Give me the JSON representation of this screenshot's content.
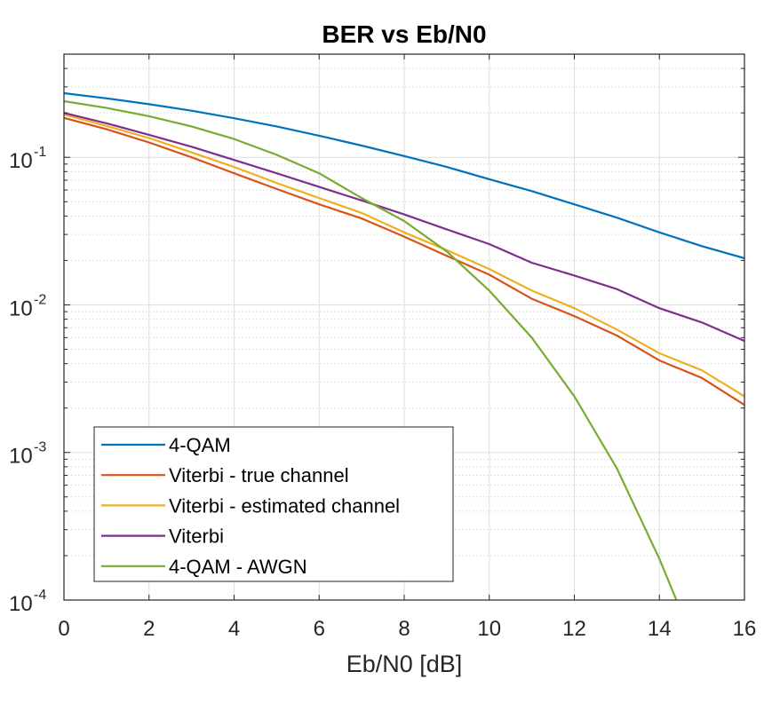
{
  "chart_data": {
    "type": "line",
    "title": "BER vs Eb/N0",
    "xlabel": "Eb/N0 [dB]",
    "ylabel": "",
    "xlim": [
      0,
      16
    ],
    "ylim": [
      0.0001,
      0.5
    ],
    "yscale": "log",
    "grid": true,
    "legend_position": "bottom-left",
    "x_ticks": [
      "0",
      "2",
      "4",
      "6",
      "8",
      "10",
      "12",
      "14",
      "16"
    ],
    "y_ticks": [
      {
        "base": "10",
        "exp": "-1",
        "value": 0.1
      },
      {
        "base": "10",
        "exp": "-2",
        "value": 0.01
      },
      {
        "base": "10",
        "exp": "-3",
        "value": 0.001
      },
      {
        "base": "10",
        "exp": "-4",
        "value": 0.0001
      }
    ],
    "series": [
      {
        "name": "4-QAM",
        "color": "#0072BD",
        "x": [
          0,
          1,
          2,
          3,
          4,
          5,
          6,
          7,
          8,
          9,
          10,
          11,
          12,
          13,
          14,
          15,
          16
        ],
        "y": [
          0.272,
          0.251,
          0.229,
          0.207,
          0.184,
          0.162,
          0.14,
          0.12,
          0.102,
          0.086,
          0.071,
          0.059,
          0.048,
          0.039,
          0.031,
          0.025,
          0.0207
        ]
      },
      {
        "name": "Viterbi - true channel",
        "color": "#D95319",
        "x": [
          0,
          1,
          2,
          3,
          4,
          5,
          6,
          7,
          8,
          9,
          10,
          11,
          12,
          13,
          14,
          15,
          16
        ],
        "y": [
          0.185,
          0.155,
          0.126,
          0.1,
          0.078,
          0.061,
          0.048,
          0.0385,
          0.029,
          0.0215,
          0.016,
          0.011,
          0.0084,
          0.0062,
          0.0042,
          0.0032,
          0.0021
        ]
      },
      {
        "name": "Viterbi - estimated channel",
        "color": "#EDB120",
        "x": [
          0,
          1,
          2,
          3,
          4,
          5,
          6,
          7,
          8,
          9,
          10,
          11,
          12,
          13,
          14,
          15,
          16
        ],
        "y": [
          0.195,
          0.163,
          0.135,
          0.108,
          0.086,
          0.067,
          0.053,
          0.042,
          0.031,
          0.0235,
          0.0175,
          0.0125,
          0.0095,
          0.0068,
          0.0047,
          0.0036,
          0.0024
        ]
      },
      {
        "name": "Viterbi",
        "color": "#7E2F8E",
        "x": [
          0,
          1,
          2,
          3,
          4,
          5,
          6,
          7,
          8,
          9,
          10,
          11,
          12,
          13,
          14,
          15,
          16
        ],
        "y": [
          0.2,
          0.17,
          0.142,
          0.118,
          0.096,
          0.078,
          0.063,
          0.051,
          0.041,
          0.0325,
          0.0258,
          0.0193,
          0.0158,
          0.0128,
          0.0095,
          0.0076,
          0.0057
        ]
      },
      {
        "name": "4-QAM - AWGN",
        "color": "#77AC30",
        "x": [
          0,
          1,
          2,
          3,
          4,
          5,
          6,
          7,
          8,
          9,
          10,
          11,
          12,
          13,
          14,
          14.4
        ],
        "y": [
          0.24,
          0.216,
          0.19,
          0.162,
          0.133,
          0.104,
          0.078,
          0.053,
          0.037,
          0.023,
          0.0125,
          0.006,
          0.0024,
          0.00078,
          0.00019,
          0.0001
        ]
      }
    ]
  }
}
